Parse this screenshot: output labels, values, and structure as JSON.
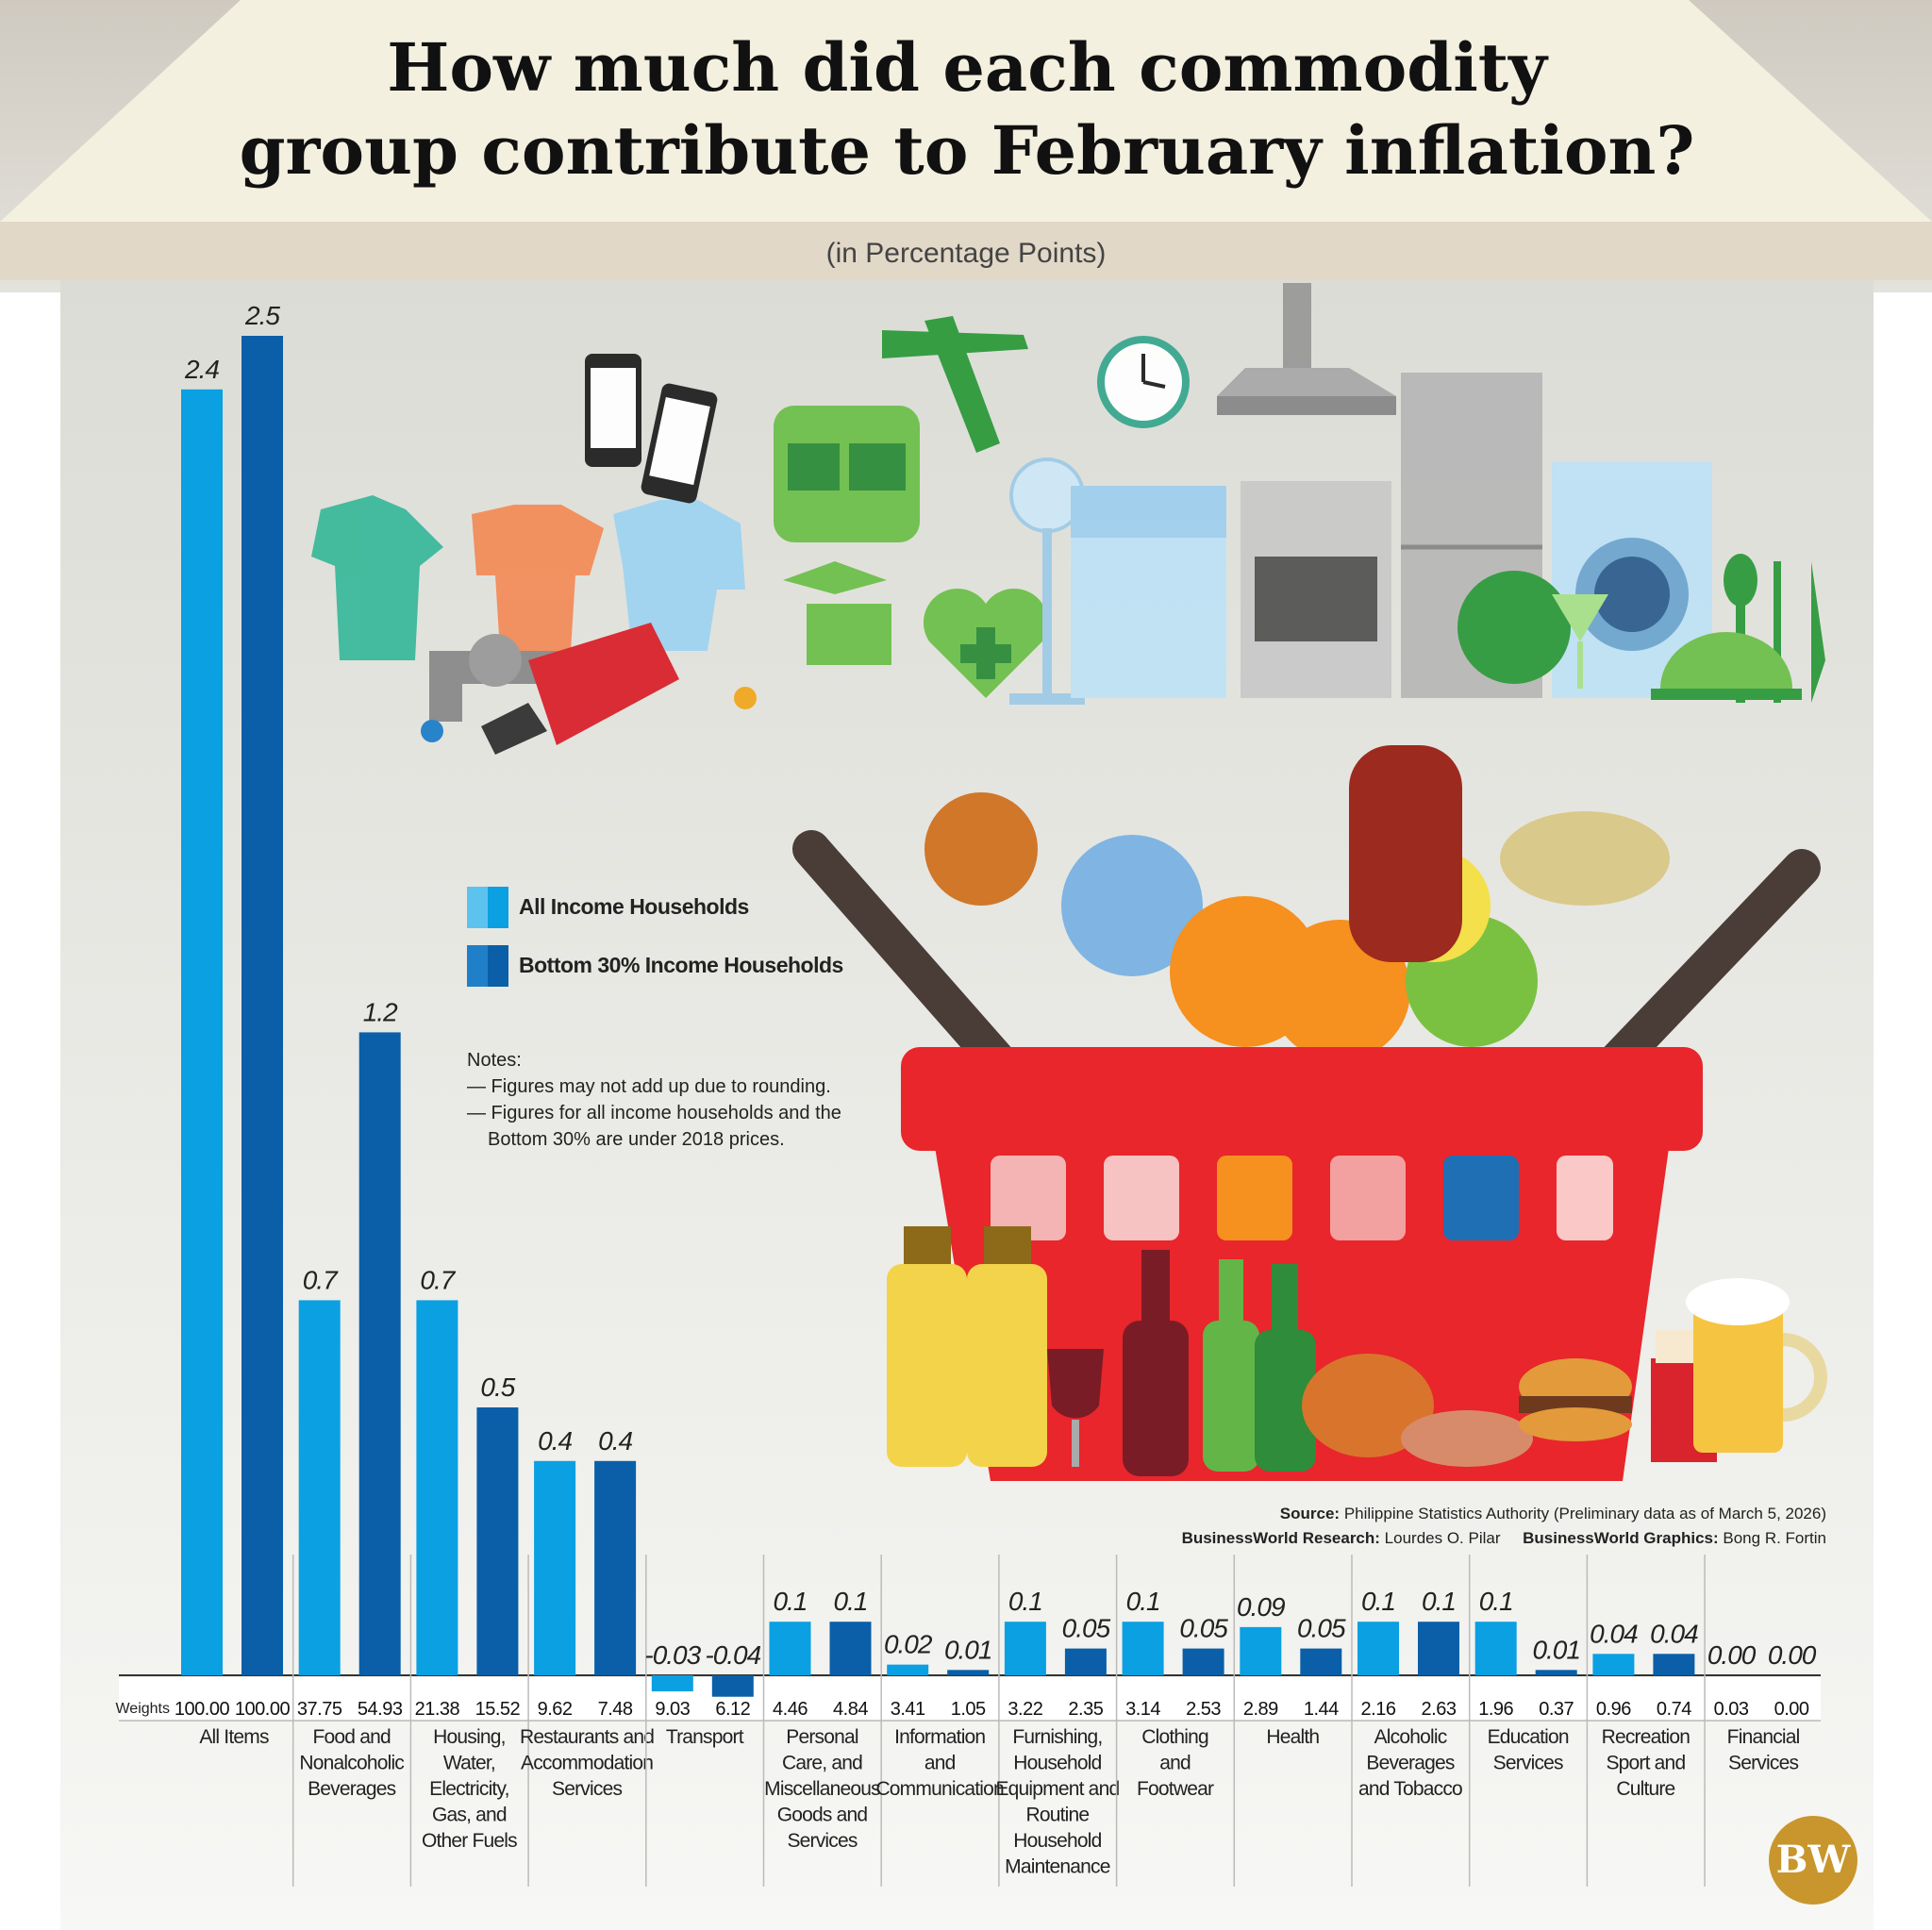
{
  "header": {
    "title_line1": "How much did each commodity",
    "title_line2": "group contribute to February inflation?",
    "subtitle": "(in Percentage Points)"
  },
  "legend": {
    "all_label": "All Income Households",
    "bottom_label": "Bottom 30% Income Households"
  },
  "notes": {
    "heading": "Notes:",
    "line1": "— Figures may not add up due to rounding.",
    "line2": "— Figures for all income households and the Bottom 30% are under 2018 prices."
  },
  "source": {
    "source_label": "Source:",
    "source_text": "Philippine Statistics Authority (Preliminary data as of March 5, 2026)",
    "research_label": "BusinessWorld Research:",
    "research_name": "Lourdes O. Pilar",
    "graphics_label": "BusinessWorld Graphics:",
    "graphics_name": "Bong R. Fortin"
  },
  "logo": {
    "text": "BW"
  },
  "colors": {
    "all": "#0aa0e2",
    "bottom": "#0a5fa8",
    "sky": "#d8d5cc",
    "roof": "#f3f0e0",
    "eave": "#e2d8c8",
    "house": "#e8e8e4"
  },
  "illustration_icons": [
    "shirt-icon",
    "phone-icon",
    "bus-icon",
    "airplane-icon",
    "clock-icon",
    "range-hood-icon",
    "fan-icon",
    "dishwasher-icon",
    "stove-icon",
    "refrigerator-icon",
    "washing-machine-icon",
    "faucet-icon",
    "fuel-nozzle-icon",
    "graduation-cap-icon",
    "health-heart-icon",
    "globe-icon",
    "cocktail-icon",
    "cutlery-icon",
    "grocery-basket-icon",
    "oil-bottle-icon",
    "wine-icon",
    "beer-bottle-icon",
    "burger-icon",
    "cigarettes-icon",
    "beer-mug-icon"
  ],
  "chart_data": {
    "type": "bar",
    "title": "How much did each commodity group contribute to February inflation?",
    "unit": "(in Percentage Points)",
    "weights_label": "Weights",
    "categories": [
      "All Items",
      "Food and Nonalcoholic Beverages",
      "Housing, Water, Electricity, Gas, and Other Fuels",
      "Restaurants and Accommodation Services",
      "Transport",
      "Personal Care, and Miscellaneous Goods and Services",
      "Information and Communication",
      "Furnishing, Household Equipment and Routine Household Maintenance",
      "Clothing and Footwear",
      "Health",
      "Alcoholic Beverages and Tobacco",
      "Education Services",
      "Recreation Sport and Culture",
      "Financial Services"
    ],
    "category_label_lines": [
      [
        "All Items"
      ],
      [
        "Food and",
        "Nonalcoholic",
        "Beverages"
      ],
      [
        "Housing,",
        "Water,",
        "Electricity,",
        "Gas, and",
        "Other Fuels"
      ],
      [
        "Restaurants and",
        "Accommodation",
        "Services"
      ],
      [
        "Transport"
      ],
      [
        "Personal",
        "Care, and",
        "Miscellaneous",
        "Goods and",
        "Services"
      ],
      [
        "Information",
        "and",
        "Communication"
      ],
      [
        "Furnishing,",
        "Household",
        "Equipment and",
        "Routine",
        "Household",
        "Maintenance"
      ],
      [
        "Clothing",
        "and",
        "Footwear"
      ],
      [
        "Health"
      ],
      [
        "Alcoholic",
        "Beverages",
        "and Tobacco"
      ],
      [
        "Education",
        "Services"
      ],
      [
        "Recreation",
        "Sport and",
        "Culture"
      ],
      [
        "Financial",
        "Services"
      ]
    ],
    "series": [
      {
        "name": "All Income Households",
        "values": [
          2.4,
          0.7,
          0.7,
          0.4,
          -0.03,
          0.1,
          0.02,
          0.1,
          0.1,
          0.09,
          0.1,
          0.1,
          0.04,
          0.0
        ],
        "value_labels": [
          "2.4",
          "0.7",
          "0.7",
          "0.4",
          "-0.03",
          "0.1",
          "0.02",
          "0.1",
          "0.1",
          "0.09",
          "0.1",
          "0.1",
          "0.04",
          "0.00"
        ],
        "weights": [
          "100.00",
          "37.75",
          "21.38",
          "9.62",
          "9.03",
          "4.46",
          "3.41",
          "3.22",
          "3.14",
          "2.89",
          "2.16",
          "1.96",
          "0.96",
          "0.03"
        ]
      },
      {
        "name": "Bottom 30% Income Households",
        "values": [
          2.5,
          1.2,
          0.5,
          0.4,
          -0.04,
          0.1,
          0.01,
          0.05,
          0.05,
          0.05,
          0.1,
          0.01,
          0.04,
          0.0
        ],
        "value_labels": [
          "2.5",
          "1.2",
          "0.5",
          "0.4",
          "-0.04",
          "0.1",
          "0.01",
          "0.05",
          "0.05",
          "0.05",
          "0.1",
          "0.01",
          "0.04",
          "0.00"
        ],
        "weights": [
          "100.00",
          "54.93",
          "15.52",
          "7.48",
          "6.12",
          "4.84",
          "1.05",
          "2.35",
          "2.53",
          "1.44",
          "2.63",
          "0.37",
          "0.74",
          "0.00"
        ]
      }
    ],
    "legend_position": "left-middle",
    "grid": false
  }
}
